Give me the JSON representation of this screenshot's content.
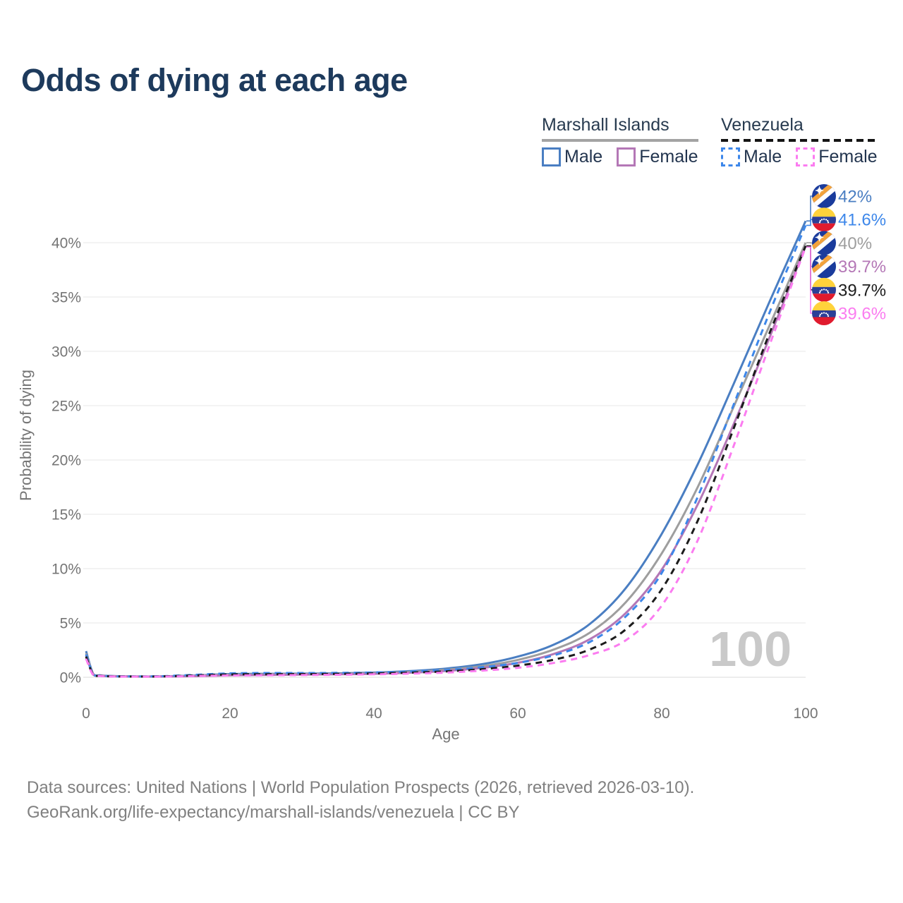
{
  "title": "Odds of dying at each age",
  "legend": {
    "groups": [
      {
        "country": "Marshall Islands",
        "line_style": "solid",
        "underline_color": "#a3a3a3",
        "items": [
          {
            "label": "Male",
            "color": "#4a7ec2",
            "dashed": false
          },
          {
            "label": "Female",
            "color": "#b477b6",
            "dashed": false
          }
        ]
      },
      {
        "country": "Venezuela",
        "line_style": "dashed",
        "underline_color": "#141414",
        "items": [
          {
            "label": "Male",
            "color": "#3d87ea",
            "dashed": true
          },
          {
            "label": "Female",
            "color": "#fb7cf0",
            "dashed": true
          }
        ]
      }
    ]
  },
  "axes": {
    "x_label": "Age",
    "y_label": "Probability of dying",
    "x_ticks": [
      0,
      20,
      40,
      60,
      80,
      100
    ],
    "y_tick_labels": [
      "0%",
      "5%",
      "10%",
      "15%",
      "20%",
      "25%",
      "30%",
      "35%",
      "40%"
    ],
    "y_tick_values": [
      0,
      5,
      10,
      15,
      20,
      25,
      30,
      35,
      40
    ],
    "x_range": [
      0,
      100
    ],
    "y_range_percent": [
      0,
      44
    ],
    "grid": "horizontal"
  },
  "watermark": "100",
  "footer": {
    "line1": "Data sources: United Nations | World Population Prospects (2026, retrieved 2026-03-10).",
    "line2": "GeoRank.org/life-expectancy/marshall-islands/venezuela | CC BY"
  },
  "chart_data": {
    "type": "line",
    "title": "Odds of dying at each age",
    "xlabel": "Age",
    "ylabel": "Probability of dying",
    "legend_position": "top-right",
    "grid": "horizontal",
    "x": [
      0,
      1,
      2,
      3,
      5,
      10,
      15,
      20,
      25,
      30,
      35,
      40,
      45,
      50,
      55,
      60,
      65,
      70,
      75,
      80,
      85,
      90,
      95,
      100
    ],
    "series": [
      {
        "name": "Marshall Islands Male",
        "country": "Marshall Islands",
        "sex": "Male",
        "flag": "marshall-islands",
        "style": "solid",
        "color": "#4a7ec2",
        "end_label": "42%",
        "end_value": 42.0,
        "values": [
          2.4,
          0.3,
          0.18,
          0.13,
          0.09,
          0.08,
          0.16,
          0.3,
          0.32,
          0.33,
          0.36,
          0.43,
          0.57,
          0.8,
          1.2,
          1.9,
          3.0,
          4.9,
          8.2,
          13.2,
          19.6,
          27.0,
          34.6,
          42.0
        ]
      },
      {
        "name": "Venezuela Male",
        "country": "Venezuela",
        "sex": "Male",
        "flag": "venezuela",
        "style": "dashed",
        "color": "#3d87ea",
        "end_label": "41.6%",
        "end_value": 41.6,
        "values": [
          2.1,
          0.25,
          0.15,
          0.11,
          0.08,
          0.09,
          0.22,
          0.36,
          0.39,
          0.39,
          0.4,
          0.44,
          0.52,
          0.67,
          0.92,
          1.32,
          2.02,
          3.25,
          5.6,
          9.6,
          16.6,
          25.1,
          33.6,
          41.6
        ]
      },
      {
        "name": "Marshall Islands Both sexes",
        "country": "Marshall Islands",
        "sex": "Both",
        "flag": "marshall-islands",
        "style": "solid",
        "color": "#9e9e9e",
        "end_label": "40%",
        "end_value": 40.0,
        "values": [
          2.2,
          0.27,
          0.16,
          0.12,
          0.08,
          0.07,
          0.13,
          0.24,
          0.27,
          0.29,
          0.31,
          0.37,
          0.49,
          0.69,
          1.02,
          1.6,
          2.55,
          4.1,
          6.9,
          11.4,
          17.5,
          24.9,
          32.4,
          40.0
        ]
      },
      {
        "name": "Marshall Islands Female",
        "country": "Marshall Islands",
        "sex": "Female",
        "flag": "marshall-islands",
        "style": "solid",
        "color": "#b477b6",
        "end_label": "39.7%",
        "end_value": 39.7,
        "values": [
          2.0,
          0.24,
          0.14,
          0.1,
          0.07,
          0.06,
          0.1,
          0.18,
          0.21,
          0.24,
          0.27,
          0.32,
          0.42,
          0.58,
          0.86,
          1.33,
          2.15,
          3.5,
          5.9,
          9.9,
          15.9,
          23.3,
          31.3,
          39.7
        ]
      },
      {
        "name": "Venezuela Both sexes",
        "country": "Venezuela",
        "sex": "Both",
        "flag": "venezuela",
        "style": "dashed",
        "color": "#1c1c1c",
        "end_label": "39.7%",
        "end_value": 39.7,
        "values": [
          1.9,
          0.22,
          0.13,
          0.09,
          0.07,
          0.07,
          0.16,
          0.26,
          0.28,
          0.29,
          0.31,
          0.35,
          0.42,
          0.54,
          0.74,
          1.07,
          1.62,
          2.55,
          4.4,
          8.1,
          14.4,
          22.9,
          31.7,
          39.7
        ]
      },
      {
        "name": "Venezuela Female",
        "country": "Venezuela",
        "sex": "Female",
        "flag": "venezuela",
        "style": "dashed",
        "color": "#fb7cf0",
        "end_label": "39.6%",
        "end_value": 39.6,
        "values": [
          1.7,
          0.19,
          0.11,
          0.08,
          0.06,
          0.06,
          0.11,
          0.16,
          0.18,
          0.2,
          0.23,
          0.27,
          0.33,
          0.43,
          0.61,
          0.87,
          1.32,
          2.05,
          3.4,
          6.6,
          12.6,
          21.3,
          30.6,
          39.6
        ]
      }
    ]
  },
  "colors": {
    "title": "#1d3a5c",
    "axis_text": "#757575",
    "grid_line": "#ececec",
    "watermark": "#c9c9c9",
    "footer_text": "#808080"
  }
}
